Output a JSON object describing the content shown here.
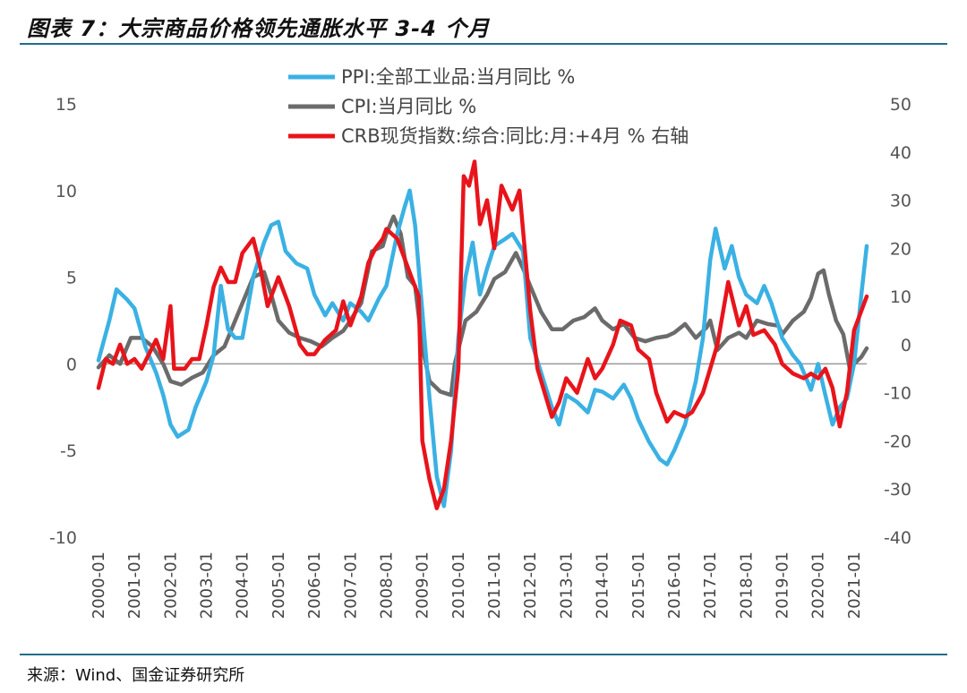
{
  "title": "图表 7：大宗商品价格领先通胀水平 3-4 个月",
  "source": "来源：Wind、国金证券研究所",
  "chart_data": {
    "type": "line",
    "x_ticks": [
      "2000-01",
      "2001-01",
      "2002-01",
      "2003-01",
      "2004-01",
      "2005-01",
      "2006-01",
      "2007-01",
      "2008-01",
      "2009-01",
      "2010-01",
      "2011-01",
      "2012-01",
      "2013-01",
      "2014-01",
      "2015-01",
      "2016-01",
      "2017-01",
      "2018-01",
      "2019-01",
      "2020-01",
      "2021-01"
    ],
    "y_left": {
      "ticks": [
        "15",
        "10",
        "5",
        "0",
        "-5",
        "-10"
      ],
      "range": [
        -10,
        15
      ]
    },
    "y_right": {
      "ticks": [
        "50",
        "40",
        "30",
        "20",
        "10",
        "0",
        "-10",
        "-20",
        "-30",
        "-40"
      ],
      "range": [
        -40,
        50
      ]
    },
    "legend": [
      {
        "name": "PPI:全部工业品:当月同比 %",
        "color": "#3bb1e3"
      },
      {
        "name": "CPI:当月同比 %",
        "color": "#6b6b6b"
      },
      {
        "name": "CRB现货指数:综合:同比:月:+4月 % 右轴",
        "color": "#e8141b"
      }
    ],
    "series": [
      {
        "name": "PPI:全部工业品:当月同比 %",
        "axis": "left",
        "color": "#3bb1e3",
        "points": [
          [
            2000.0,
            0.2
          ],
          [
            2000.3,
            2.5
          ],
          [
            2000.5,
            4.3
          ],
          [
            2000.8,
            3.7
          ],
          [
            2001.0,
            3.2
          ],
          [
            2001.3,
            1.0
          ],
          [
            2001.6,
            -0.5
          ],
          [
            2001.8,
            -1.8
          ],
          [
            2002.0,
            -3.5
          ],
          [
            2002.2,
            -4.2
          ],
          [
            2002.5,
            -3.8
          ],
          [
            2002.7,
            -2.5
          ],
          [
            2003.0,
            -1.0
          ],
          [
            2003.2,
            0.5
          ],
          [
            2003.4,
            4.5
          ],
          [
            2003.6,
            2.0
          ],
          [
            2003.8,
            1.5
          ],
          [
            2004.0,
            1.5
          ],
          [
            2004.3,
            5.0
          ],
          [
            2004.6,
            7.0
          ],
          [
            2004.8,
            8.0
          ],
          [
            2005.0,
            8.2
          ],
          [
            2005.2,
            6.5
          ],
          [
            2005.5,
            5.8
          ],
          [
            2005.8,
            5.5
          ],
          [
            2006.0,
            4.0
          ],
          [
            2006.3,
            2.8
          ],
          [
            2006.5,
            3.5
          ],
          [
            2006.8,
            2.5
          ],
          [
            2007.0,
            3.5
          ],
          [
            2007.3,
            3.0
          ],
          [
            2007.5,
            2.5
          ],
          [
            2007.8,
            3.8
          ],
          [
            2008.0,
            4.5
          ],
          [
            2008.3,
            7.5
          ],
          [
            2008.5,
            9.0
          ],
          [
            2008.65,
            10.0
          ],
          [
            2008.8,
            8.0
          ],
          [
            2009.0,
            3.0
          ],
          [
            2009.2,
            -2.0
          ],
          [
            2009.4,
            -6.5
          ],
          [
            2009.6,
            -8.2
          ],
          [
            2009.8,
            -5.0
          ],
          [
            2010.0,
            1.5
          ],
          [
            2010.2,
            5.0
          ],
          [
            2010.4,
            7.0
          ],
          [
            2010.6,
            4.0
          ],
          [
            2010.8,
            5.5
          ],
          [
            2011.0,
            6.8
          ],
          [
            2011.3,
            7.2
          ],
          [
            2011.5,
            7.5
          ],
          [
            2011.8,
            6.5
          ],
          [
            2012.0,
            1.5
          ],
          [
            2012.3,
            -0.5
          ],
          [
            2012.6,
            -2.5
          ],
          [
            2012.8,
            -3.5
          ],
          [
            2013.0,
            -1.8
          ],
          [
            2013.3,
            -2.2
          ],
          [
            2013.6,
            -2.8
          ],
          [
            2013.8,
            -1.5
          ],
          [
            2014.0,
            -1.6
          ],
          [
            2014.3,
            -2.0
          ],
          [
            2014.6,
            -1.2
          ],
          [
            2014.8,
            -2.0
          ],
          [
            2015.0,
            -3.2
          ],
          [
            2015.3,
            -4.5
          ],
          [
            2015.6,
            -5.5
          ],
          [
            2015.8,
            -5.8
          ],
          [
            2016.0,
            -5.0
          ],
          [
            2016.3,
            -3.5
          ],
          [
            2016.6,
            -1.0
          ],
          [
            2016.8,
            1.5
          ],
          [
            2017.0,
            6.0
          ],
          [
            2017.15,
            7.8
          ],
          [
            2017.4,
            5.5
          ],
          [
            2017.6,
            6.8
          ],
          [
            2017.8,
            5.0
          ],
          [
            2018.0,
            4.0
          ],
          [
            2018.3,
            3.5
          ],
          [
            2018.5,
            4.5
          ],
          [
            2018.7,
            3.5
          ],
          [
            2019.0,
            1.5
          ],
          [
            2019.3,
            0.5
          ],
          [
            2019.5,
            0.0
          ],
          [
            2019.8,
            -1.5
          ],
          [
            2020.0,
            0.0
          ],
          [
            2020.2,
            -1.8
          ],
          [
            2020.4,
            -3.5
          ],
          [
            2020.6,
            -2.5
          ],
          [
            2020.8,
            -2.0
          ],
          [
            2021.0,
            0.0
          ],
          [
            2021.2,
            4.0
          ],
          [
            2021.35,
            6.8
          ]
        ]
      },
      {
        "name": "CPI:当月同比 %",
        "axis": "left",
        "color": "#6b6b6b",
        "points": [
          [
            2000.0,
            -0.2
          ],
          [
            2000.3,
            0.5
          ],
          [
            2000.6,
            0.0
          ],
          [
            2000.9,
            1.5
          ],
          [
            2001.2,
            1.5
          ],
          [
            2001.5,
            1.0
          ],
          [
            2001.8,
            0.0
          ],
          [
            2002.0,
            -1.0
          ],
          [
            2002.3,
            -1.2
          ],
          [
            2002.6,
            -0.8
          ],
          [
            2002.9,
            -0.5
          ],
          [
            2003.2,
            0.5
          ],
          [
            2003.5,
            1.0
          ],
          [
            2003.8,
            2.5
          ],
          [
            2004.0,
            3.5
          ],
          [
            2004.3,
            5.0
          ],
          [
            2004.6,
            5.3
          ],
          [
            2004.8,
            4.0
          ],
          [
            2005.0,
            2.5
          ],
          [
            2005.3,
            1.8
          ],
          [
            2005.6,
            1.5
          ],
          [
            2005.9,
            1.3
          ],
          [
            2006.2,
            1.0
          ],
          [
            2006.5,
            1.5
          ],
          [
            2006.8,
            1.9
          ],
          [
            2007.0,
            2.5
          ],
          [
            2007.3,
            3.5
          ],
          [
            2007.6,
            6.5
          ],
          [
            2007.9,
            6.8
          ],
          [
            2008.0,
            7.5
          ],
          [
            2008.2,
            8.5
          ],
          [
            2008.4,
            7.5
          ],
          [
            2008.6,
            5.0
          ],
          [
            2008.8,
            4.5
          ],
          [
            2009.0,
            1.0
          ],
          [
            2009.2,
            -1.0
          ],
          [
            2009.5,
            -1.6
          ],
          [
            2009.8,
            -1.8
          ],
          [
            2009.9,
            0.0
          ],
          [
            2010.2,
            2.5
          ],
          [
            2010.5,
            3.0
          ],
          [
            2010.8,
            4.0
          ],
          [
            2011.0,
            4.9
          ],
          [
            2011.3,
            5.3
          ],
          [
            2011.6,
            6.4
          ],
          [
            2011.8,
            5.5
          ],
          [
            2012.0,
            4.5
          ],
          [
            2012.3,
            3.0
          ],
          [
            2012.6,
            2.0
          ],
          [
            2012.9,
            2.0
          ],
          [
            2013.2,
            2.5
          ],
          [
            2013.5,
            2.7
          ],
          [
            2013.8,
            3.2
          ],
          [
            2014.0,
            2.5
          ],
          [
            2014.3,
            2.0
          ],
          [
            2014.6,
            2.3
          ],
          [
            2014.9,
            1.5
          ],
          [
            2015.2,
            1.3
          ],
          [
            2015.5,
            1.5
          ],
          [
            2015.8,
            1.6
          ],
          [
            2016.0,
            1.8
          ],
          [
            2016.3,
            2.3
          ],
          [
            2016.6,
            1.5
          ],
          [
            2016.9,
            2.1
          ],
          [
            2017.0,
            2.5
          ],
          [
            2017.2,
            0.8
          ],
          [
            2017.5,
            1.5
          ],
          [
            2017.8,
            1.8
          ],
          [
            2018.0,
            1.5
          ],
          [
            2018.3,
            2.5
          ],
          [
            2018.6,
            2.3
          ],
          [
            2018.9,
            2.2
          ],
          [
            2019.0,
            1.7
          ],
          [
            2019.3,
            2.5
          ],
          [
            2019.6,
            3.0
          ],
          [
            2019.8,
            3.8
          ],
          [
            2020.0,
            5.2
          ],
          [
            2020.15,
            5.4
          ],
          [
            2020.3,
            4.0
          ],
          [
            2020.5,
            2.5
          ],
          [
            2020.7,
            1.7
          ],
          [
            2020.9,
            -0.5
          ],
          [
            2021.0,
            0.0
          ],
          [
            2021.2,
            0.4
          ],
          [
            2021.35,
            0.9
          ]
        ]
      },
      {
        "name": "CRB现货指数:综合:同比:月:+4月 % 右轴",
        "axis": "right",
        "color": "#e8141b",
        "points": [
          [
            2000.0,
            -9
          ],
          [
            2000.2,
            -3
          ],
          [
            2000.4,
            -4
          ],
          [
            2000.6,
            0
          ],
          [
            2000.8,
            -4
          ],
          [
            2001.0,
            -3
          ],
          [
            2001.2,
            -5
          ],
          [
            2001.4,
            -2
          ],
          [
            2001.6,
            1
          ],
          [
            2001.8,
            -3
          ],
          [
            2002.0,
            8
          ],
          [
            2002.1,
            -5
          ],
          [
            2002.4,
            -5
          ],
          [
            2002.6,
            -3
          ],
          [
            2002.8,
            -3
          ],
          [
            2003.0,
            4
          ],
          [
            2003.2,
            12
          ],
          [
            2003.4,
            16
          ],
          [
            2003.6,
            13
          ],
          [
            2003.8,
            13
          ],
          [
            2004.0,
            19
          ],
          [
            2004.3,
            22
          ],
          [
            2004.5,
            16
          ],
          [
            2004.7,
            8
          ],
          [
            2004.9,
            12
          ],
          [
            2005.0,
            14
          ],
          [
            2005.3,
            8
          ],
          [
            2005.6,
            0
          ],
          [
            2005.8,
            -2
          ],
          [
            2006.0,
            -2
          ],
          [
            2006.3,
            1
          ],
          [
            2006.6,
            3
          ],
          [
            2006.8,
            9
          ],
          [
            2007.0,
            4
          ],
          [
            2007.3,
            10
          ],
          [
            2007.5,
            17
          ],
          [
            2007.7,
            20
          ],
          [
            2007.9,
            22
          ],
          [
            2008.0,
            24
          ],
          [
            2008.3,
            22
          ],
          [
            2008.5,
            18
          ],
          [
            2008.7,
            14
          ],
          [
            2008.9,
            10
          ],
          [
            2009.0,
            -20
          ],
          [
            2009.2,
            -28
          ],
          [
            2009.4,
            -34
          ],
          [
            2009.6,
            -30
          ],
          [
            2009.8,
            -20
          ],
          [
            2010.0,
            -5
          ],
          [
            2010.15,
            35
          ],
          [
            2010.3,
            33
          ],
          [
            2010.45,
            38
          ],
          [
            2010.6,
            25
          ],
          [
            2010.8,
            30
          ],
          [
            2011.0,
            20
          ],
          [
            2011.2,
            33
          ],
          [
            2011.5,
            28
          ],
          [
            2011.7,
            32
          ],
          [
            2012.0,
            7
          ],
          [
            2012.2,
            -5
          ],
          [
            2012.4,
            -10
          ],
          [
            2012.6,
            -15
          ],
          [
            2012.8,
            -12
          ],
          [
            2013.0,
            -7
          ],
          [
            2013.3,
            -10
          ],
          [
            2013.6,
            -3
          ],
          [
            2013.8,
            -7
          ],
          [
            2014.0,
            -5
          ],
          [
            2014.3,
            0
          ],
          [
            2014.5,
            5
          ],
          [
            2014.8,
            4
          ],
          [
            2015.0,
            -1
          ],
          [
            2015.3,
            -3
          ],
          [
            2015.5,
            -10
          ],
          [
            2015.8,
            -16
          ],
          [
            2016.0,
            -14
          ],
          [
            2016.3,
            -15
          ],
          [
            2016.5,
            -14
          ],
          [
            2016.8,
            -10
          ],
          [
            2017.0,
            -5
          ],
          [
            2017.2,
            0
          ],
          [
            2017.5,
            13
          ],
          [
            2017.8,
            4
          ],
          [
            2018.0,
            8
          ],
          [
            2018.2,
            2
          ],
          [
            2018.5,
            3
          ],
          [
            2018.8,
            0
          ],
          [
            2019.0,
            -4
          ],
          [
            2019.3,
            -6
          ],
          [
            2019.6,
            -7
          ],
          [
            2019.8,
            -6
          ],
          [
            2020.0,
            -7
          ],
          [
            2020.2,
            -5
          ],
          [
            2020.4,
            -9
          ],
          [
            2020.6,
            -17
          ],
          [
            2020.8,
            -10
          ],
          [
            2021.0,
            3
          ],
          [
            2021.2,
            7
          ],
          [
            2021.35,
            10
          ]
        ]
      }
    ]
  }
}
